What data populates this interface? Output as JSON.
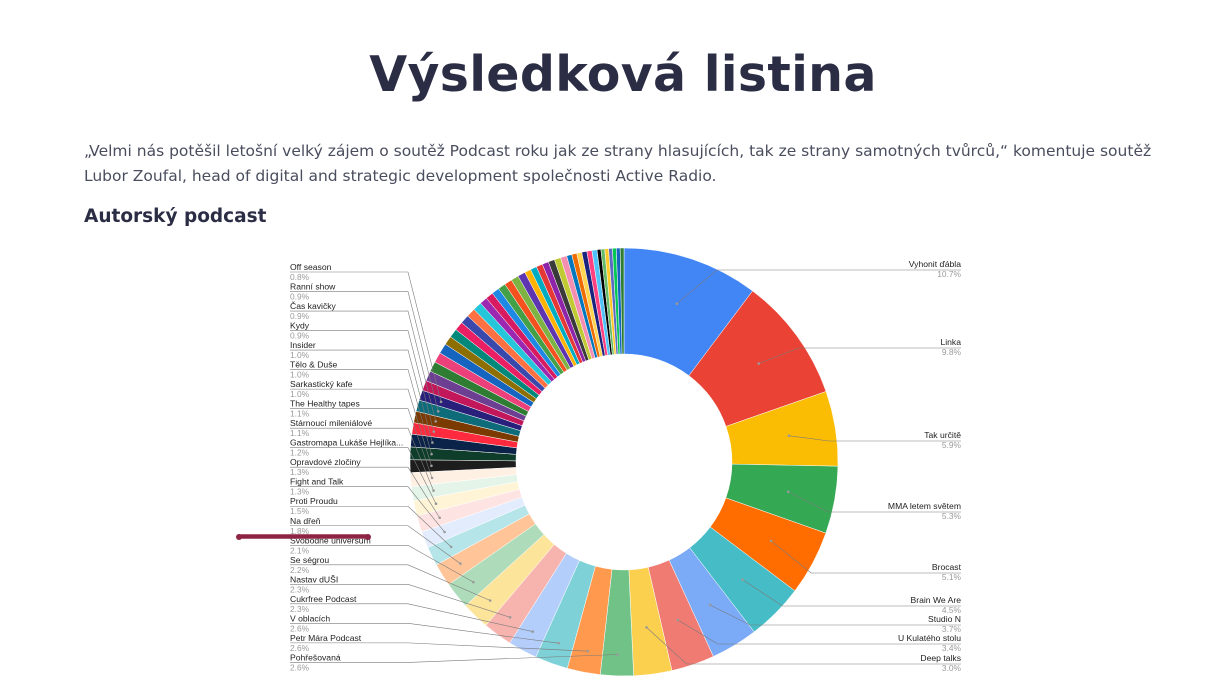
{
  "page": {
    "title": "Výsledková listina",
    "intro": "„Velmi nás potěšil letošní velký zájem o soutěž Podcast roku jak ze strany hlasujících, tak ze strany samotných tvůrců,“ komentuje soutěž Lubor Zoufal, head of digital and strategic development společnosti Active Radio.",
    "section_title": "Autorský podcast"
  },
  "chart_data": {
    "type": "pie",
    "donut": true,
    "title": "",
    "unit": "%",
    "slices": [
      {
        "name": "Vyhonit ďábla",
        "value": 10.7,
        "pct_label": "10.7%",
        "color": "#4285f4"
      },
      {
        "name": "Linka",
        "value": 9.8,
        "pct_label": "9.8%",
        "color": "#ea4335"
      },
      {
        "name": "Tak určitě",
        "value": 5.9,
        "pct_label": "5.9%",
        "color": "#fbbc04"
      },
      {
        "name": "MMA letem světem",
        "value": 5.3,
        "pct_label": "5.3%",
        "color": "#34a853"
      },
      {
        "name": "Brocast",
        "value": 5.1,
        "pct_label": "5.1%",
        "color": "#ff6d01"
      },
      {
        "name": "Brain We Are",
        "value": 4.5,
        "pct_label": "4.5%",
        "color": "#46bdc6"
      },
      {
        "name": "Studio N",
        "value": 3.7,
        "pct_label": "3.7%",
        "color": "#7baaf7"
      },
      {
        "name": "U Kulatého stolu",
        "value": 3.4,
        "pct_label": "3.4%",
        "color": "#f07b72"
      },
      {
        "name": "Deep talks",
        "value": 3.0,
        "pct_label": "3.0%",
        "color": "#fcd04f"
      },
      {
        "name": "Pohřešovaná",
        "value": 2.6,
        "pct_label": "2.6%",
        "color": "#71c287"
      },
      {
        "name": "Petr Mára Podcast",
        "value": 2.6,
        "pct_label": "2.6%",
        "color": "#ff994d"
      },
      {
        "name": "V oblacích",
        "value": 2.6,
        "pct_label": "2.6%",
        "color": "#7ed1d7"
      },
      {
        "name": "Cukrfree Podcast",
        "value": 2.3,
        "pct_label": "2.3%",
        "color": "#b3cefb"
      },
      {
        "name": "Nastav dUŠI",
        "value": 2.3,
        "pct_label": "2.3%",
        "color": "#f7b4ae"
      },
      {
        "name": "Se ségrou",
        "value": 2.2,
        "pct_label": "2.2%",
        "color": "#fde49b"
      },
      {
        "name": "Svobodné universum",
        "value": 2.1,
        "pct_label": "2.1%",
        "color": "#aedcba"
      },
      {
        "name": "Na dřeň",
        "value": 1.8,
        "pct_label": "1.8%",
        "color": "#ffc599"
      },
      {
        "name": "Proti Proudu",
        "value": 1.5,
        "pct_label": "1.5%",
        "color": "#b5e5e8"
      },
      {
        "name": "Fight and Talk",
        "value": 1.3,
        "pct_label": "1.3%",
        "color": "#e3ecfd"
      },
      {
        "name": "Opravdové zločiny",
        "value": 1.3,
        "pct_label": "1.3%",
        "color": "#fde4e2"
      },
      {
        "name": "Gastromapa Lukáše Hejlíka...",
        "value": 1.2,
        "pct_label": "1.2%",
        "color": "#fff4d6"
      },
      {
        "name": "Stárnoucí mileniálové",
        "value": 1.1,
        "pct_label": "1.1%",
        "color": "#e5f4e8"
      },
      {
        "name": "The Healthy tapes",
        "value": 1.1,
        "pct_label": "1.1%",
        "color": "#fff0e4"
      },
      {
        "name": "Sarkastický kafe",
        "value": 1.0,
        "pct_label": "1.0%",
        "color": "#1d1d1d"
      },
      {
        "name": "Tělo & Duše",
        "value": 1.0,
        "pct_label": "1.0%",
        "color": "#0f3d2b"
      },
      {
        "name": "Insider",
        "value": 1.0,
        "pct_label": "1.0%",
        "color": "#0b2348"
      },
      {
        "name": "Kydy",
        "value": 0.9,
        "pct_label": "0.9%",
        "color": "#ff2a3d"
      },
      {
        "name": "Čas kavičky",
        "value": 0.9,
        "pct_label": "0.9%",
        "color": "#7a3a00"
      },
      {
        "name": "Ranní show",
        "value": 0.9,
        "pct_label": "0.9%",
        "color": "#0e6b7a"
      },
      {
        "name": "Off season",
        "value": 0.8,
        "pct_label": "0.8%",
        "color": "#28207a"
      },
      {
        "name": "",
        "value": 0.8,
        "color": "#c2185b"
      },
      {
        "name": "",
        "value": 0.8,
        "color": "#6d3f93"
      },
      {
        "name": "",
        "value": 0.8,
        "color": "#2e7d32"
      },
      {
        "name": "",
        "value": 0.8,
        "color": "#ec407a"
      },
      {
        "name": "",
        "value": 0.8,
        "color": "#1565c0"
      },
      {
        "name": "",
        "value": 0.7,
        "color": "#8d6e00"
      },
      {
        "name": "",
        "value": 0.7,
        "color": "#00897b"
      },
      {
        "name": "",
        "value": 0.7,
        "color": "#e91e63"
      },
      {
        "name": "",
        "value": 0.7,
        "color": "#3949ab"
      },
      {
        "name": "",
        "value": 0.7,
        "color": "#ff7043"
      },
      {
        "name": "",
        "value": 0.7,
        "color": "#26c6da"
      },
      {
        "name": "",
        "value": 0.6,
        "color": "#9c27b0"
      },
      {
        "name": "",
        "value": 0.6,
        "color": "#d81b60"
      },
      {
        "name": "",
        "value": 0.6,
        "color": "#1e88e5"
      },
      {
        "name": "",
        "value": 0.6,
        "color": "#43a047"
      },
      {
        "name": "",
        "value": 0.6,
        "color": "#f4511e"
      },
      {
        "name": "",
        "value": 0.6,
        "color": "#7cb342"
      },
      {
        "name": "",
        "value": 0.6,
        "color": "#5e35b1"
      },
      {
        "name": "",
        "value": 0.5,
        "color": "#ffb300"
      },
      {
        "name": "",
        "value": 0.5,
        "color": "#00acc1"
      },
      {
        "name": "",
        "value": 0.5,
        "color": "#e53935"
      },
      {
        "name": "",
        "value": 0.5,
        "color": "#8e24aa"
      },
      {
        "name": "",
        "value": 0.5,
        "color": "#3a3a3a"
      },
      {
        "name": "",
        "value": 0.5,
        "color": "#c0ca33"
      },
      {
        "name": "",
        "value": 0.5,
        "color": "#f48fb1"
      },
      {
        "name": "",
        "value": 0.4,
        "color": "#0277bd"
      },
      {
        "name": "",
        "value": 0.4,
        "color": "#ef6c00"
      },
      {
        "name": "",
        "value": 0.4,
        "color": "#ffd54f"
      },
      {
        "name": "",
        "value": 0.4,
        "color": "#1a237e"
      },
      {
        "name": "",
        "value": 0.4,
        "color": "#ff4081"
      },
      {
        "name": "",
        "value": 0.4,
        "color": "#4fc3f7"
      },
      {
        "name": "",
        "value": 0.3,
        "color": "#000000"
      },
      {
        "name": "",
        "value": 0.3,
        "color": "#66bb6a"
      },
      {
        "name": "",
        "value": 0.3,
        "color": "#ffca28"
      },
      {
        "name": "",
        "value": 0.3,
        "color": "#5c6bc0"
      },
      {
        "name": "",
        "value": 0.3,
        "color": "#00c853"
      },
      {
        "name": "",
        "value": 0.3,
        "color": "#1565c0"
      },
      {
        "name": "",
        "value": 0.3,
        "color": "#2e7d32"
      }
    ],
    "legend_placement": "labels with leader lines"
  }
}
